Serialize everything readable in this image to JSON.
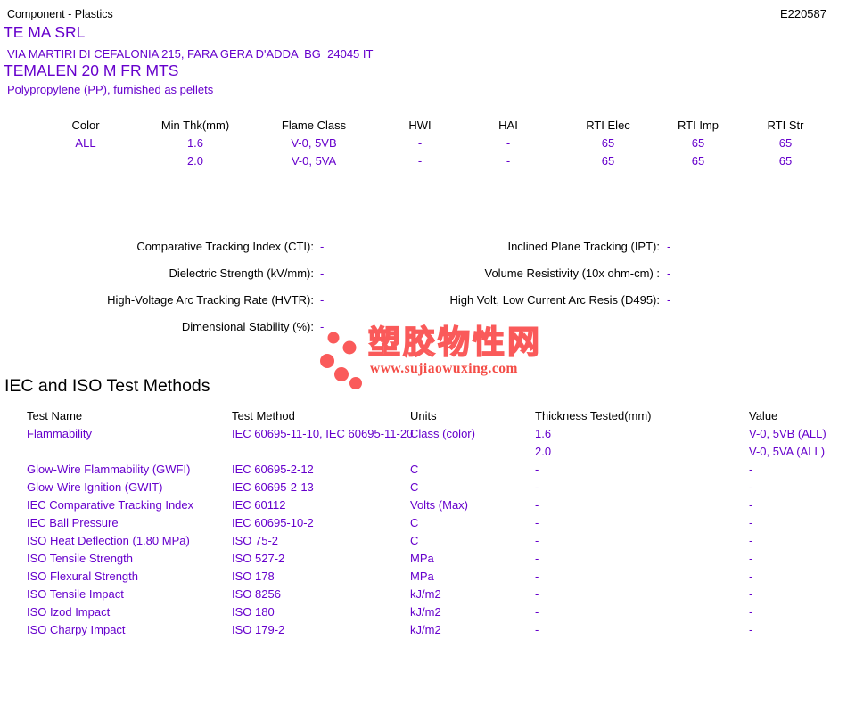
{
  "header": {
    "doc_type": "Component - Plastics",
    "file_number": "E220587"
  },
  "company": {
    "name": "TE MA SRL",
    "address": "VIA MARTIRI DI CEFALONIA 215, FARA GERA D'ADDA  BG  24045 IT",
    "product": "TEMALEN 20 M FR MTS",
    "material": "Polypropylene (PP), furnished as pellets"
  },
  "ratings_table": {
    "headers": [
      "Color",
      "Min Thk(mm)",
      "Flame Class",
      "HWI",
      "HAI",
      "RTI Elec",
      "RTI Imp",
      "RTI Str"
    ],
    "rows": [
      [
        "ALL",
        "1.6",
        "V-0, 5VB",
        "-",
        "-",
        "65",
        "65",
        "65"
      ],
      [
        "",
        "2.0",
        "V-0, 5VA",
        "-",
        "-",
        "65",
        "65",
        "65"
      ]
    ]
  },
  "properties": {
    "left": [
      {
        "label": "Comparative Tracking Index (CTI):",
        "value": "-"
      },
      {
        "label": "Dielectric Strength (kV/mm):",
        "value": "-"
      },
      {
        "label": "High-Voltage Arc Tracking Rate (HVTR):",
        "value": "-"
      },
      {
        "label": "Dimensional Stability (%):",
        "value": "-"
      }
    ],
    "right": [
      {
        "label": "Inclined Plane Tracking (IPT):",
        "value": "-"
      },
      {
        "label": "Volume Resistivity (10x ohm-cm) :",
        "value": "-"
      },
      {
        "label": "High Volt, Low Current Arc Resis (D495):",
        "value": "-"
      }
    ]
  },
  "watermark": {
    "site_name": "塑胶物性网",
    "site_url": "www.sujiaowuxing.com",
    "accent_color": "#fa5a5a"
  },
  "test_methods": {
    "title": "IEC and ISO Test Methods",
    "headers": [
      "Test Name",
      "Test Method",
      "Units",
      "Thickness Tested(mm)",
      "Value"
    ],
    "rows": [
      [
        "Flammability",
        "IEC 60695-11-10, IEC 60695-11-20",
        "Class (color)",
        "1.6",
        "V-0, 5VB (ALL)"
      ],
      [
        "",
        "",
        "",
        "2.0",
        "V-0, 5VA (ALL)"
      ],
      [
        "Glow-Wire Flammability (GWFI)",
        "IEC 60695-2-12",
        "C",
        "-",
        "-"
      ],
      [
        "Glow-Wire Ignition (GWIT)",
        "IEC 60695-2-13",
        "C",
        "-",
        "-"
      ],
      [
        "IEC Comparative Tracking Index",
        "IEC 60112",
        "Volts (Max)",
        "-",
        "-"
      ],
      [
        "IEC Ball Pressure",
        "IEC 60695-10-2",
        "C",
        "-",
        "-"
      ],
      [
        "ISO Heat Deflection (1.80 MPa)",
        "ISO 75-2",
        "C",
        "-",
        "-"
      ],
      [
        "ISO Tensile Strength",
        "ISO 527-2",
        "MPa",
        "-",
        "-"
      ],
      [
        "ISO Flexural Strength",
        "ISO 178",
        "MPa",
        "-",
        "-"
      ],
      [
        "ISO Tensile Impact",
        "ISO 8256",
        "kJ/m2",
        "-",
        "-"
      ],
      [
        "ISO Izod Impact",
        "ISO 180",
        "kJ/m2",
        "-",
        "-"
      ],
      [
        "ISO Charpy Impact",
        "ISO 179-2",
        "kJ/m2",
        "-",
        "-"
      ]
    ]
  },
  "colors": {
    "data_text_purple": "#6600cc",
    "label_text_black": "#000000",
    "watermark_red": "#fa5a5a"
  }
}
